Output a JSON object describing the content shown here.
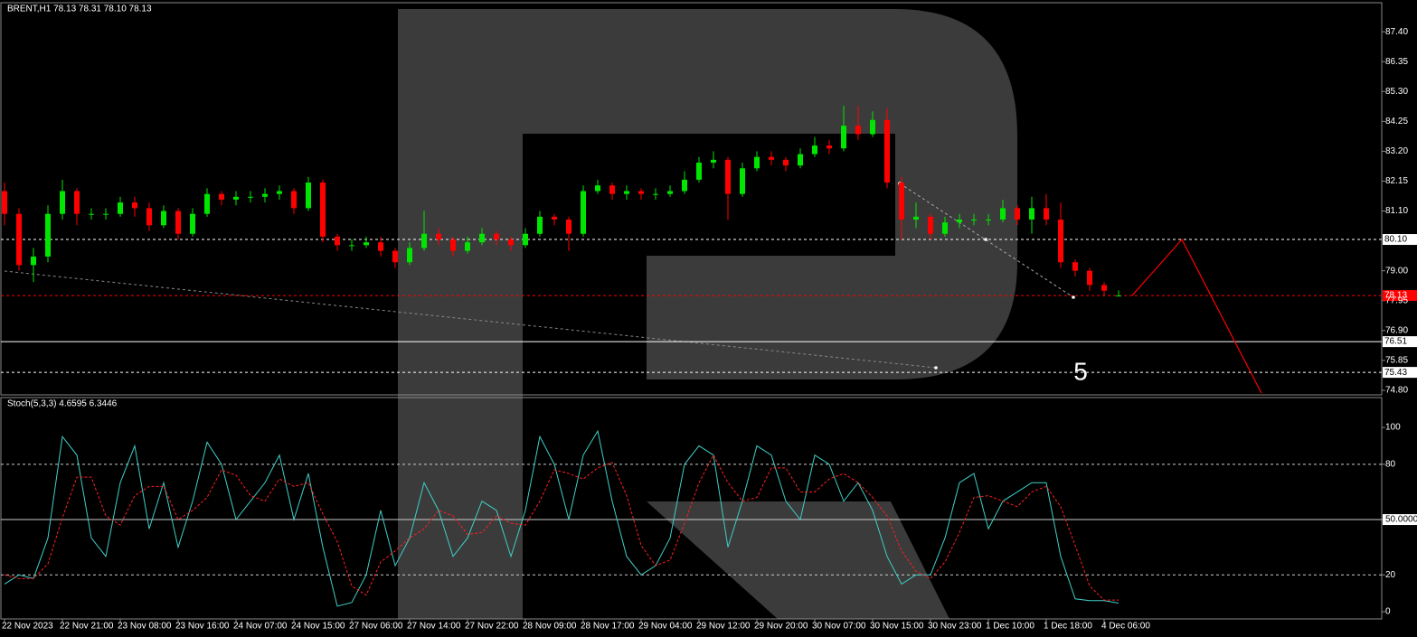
{
  "chart_data": [
    {
      "type": "candlestick",
      "title": "BRENT,H1  78.13 78.31 78.10 78.13",
      "up_color": "#00e600",
      "down_color": "#ff0000",
      "ylim": [
        74.64,
        88.42
      ],
      "yticks": [
        {
          "value": 87.4,
          "label": "87.40"
        },
        86.35,
        {
          "value": 85.3,
          "label": "85.30"
        },
        84.25,
        {
          "value": 83.2,
          "label": "83.20"
        },
        82.15,
        {
          "value": 81.1,
          "label": "81.10"
        },
        {
          "value": 79,
          "label": "79.00"
        },
        77.95,
        {
          "value": 76.9,
          "label": "76.90"
        },
        75.85,
        {
          "value": 74.8,
          "label": "74.80"
        }
      ],
      "xticks": [
        {
          "value": 0,
          "label": "22 Nov 2023"
        },
        {
          "value": 4,
          "label": "22 Nov 21:00"
        },
        {
          "value": 8,
          "label": "23 Nov 08:00"
        },
        {
          "value": 12,
          "label": "23 Nov 16:00"
        },
        {
          "value": 16,
          "label": "24 Nov 07:00"
        },
        {
          "value": 20,
          "label": "24 Nov 15:00"
        },
        {
          "value": 24,
          "label": "27 Nov 06:00"
        },
        {
          "value": 28,
          "label": "27 Nov 14:00"
        },
        {
          "value": 32,
          "label": "27 Nov 22:00"
        },
        {
          "value": 36,
          "label": "28 Nov 09:00"
        },
        {
          "value": 40,
          "label": "28 Nov 17:00"
        },
        {
          "value": 44,
          "label": "29 Nov 04:00"
        },
        {
          "value": 48,
          "label": "29 Nov 12:00"
        },
        {
          "value": 52,
          "label": "29 Nov 20:00"
        },
        {
          "value": 56,
          "label": "30 Nov 07:00"
        },
        {
          "value": 60,
          "label": "30 Nov 15:00"
        },
        {
          "value": 64,
          "label": "30 Nov 23:00"
        },
        {
          "value": 68,
          "label": "1 Dec 10:00"
        },
        {
          "value": 72,
          "label": "1 Dec 18:00"
        },
        {
          "value": 76,
          "label": "4 Dec 06:00"
        }
      ],
      "open": [
        81.8,
        81.0,
        79.2,
        79.5,
        81.0,
        81.8,
        81.0,
        81.0,
        81.0,
        81.4,
        81.2,
        80.6,
        81.1,
        80.3,
        81.0,
        81.7,
        81.5,
        81.6,
        81.6,
        81.7,
        81.8,
        81.2,
        82.1,
        80.2,
        79.9,
        79.9,
        80.0,
        79.7,
        79.3,
        79.8,
        80.3,
        80.1,
        79.7,
        80.0,
        80.3,
        80.1,
        79.9,
        80.3,
        80.9,
        80.8,
        80.3,
        81.8,
        82.0,
        81.7,
        81.8,
        81.7,
        81.7,
        81.8,
        82.2,
        82.8,
        82.9,
        81.7,
        82.6,
        83.0,
        82.9,
        82.7,
        83.1,
        83.4,
        83.3,
        84.1,
        83.8,
        84.3,
        82.1,
        80.8,
        80.9,
        80.3,
        80.7,
        80.8,
        80.8,
        80.8,
        81.2,
        80.8,
        81.2,
        80.8,
        79.3,
        79.0,
        78.5,
        78.13
      ],
      "high": [
        82.1,
        81.2,
        79.8,
        81.3,
        82.2,
        81.9,
        81.2,
        81.2,
        81.6,
        81.6,
        81.4,
        81.3,
        81.2,
        81.2,
        81.9,
        81.8,
        81.8,
        81.8,
        81.9,
        82.0,
        81.9,
        82.3,
        82.2,
        80.3,
        80.1,
        80.2,
        80.2,
        79.8,
        80.0,
        81.1,
        80.5,
        80.2,
        80.2,
        80.5,
        80.4,
        80.2,
        80.5,
        81.1,
        81.0,
        80.9,
        82.0,
        82.2,
        82.1,
        82.0,
        81.9,
        81.9,
        82.0,
        82.5,
        83.0,
        83.2,
        83.0,
        82.8,
        83.2,
        83.2,
        83.0,
        83.3,
        83.7,
        83.6,
        84.8,
        84.8,
        84.6,
        84.7,
        82.3,
        81.4,
        81.0,
        80.9,
        81.0,
        81.0,
        81.0,
        81.5,
        81.3,
        81.6,
        81.7,
        81.4,
        79.4,
        79.1,
        78.6,
        78.31
      ],
      "low": [
        80.6,
        79.0,
        78.6,
        79.3,
        80.8,
        80.6,
        80.8,
        80.8,
        80.9,
        80.9,
        80.4,
        80.5,
        80.1,
        80.2,
        80.9,
        81.3,
        81.3,
        81.4,
        81.4,
        81.5,
        81.0,
        81.1,
        80.0,
        79.7,
        79.7,
        79.8,
        79.5,
        79.1,
        79.2,
        79.7,
        79.9,
        79.5,
        79.6,
        79.9,
        79.9,
        79.7,
        79.8,
        80.2,
        80.6,
        79.7,
        80.2,
        81.7,
        81.5,
        81.5,
        81.5,
        81.5,
        81.6,
        81.7,
        82.1,
        82.6,
        80.8,
        81.6,
        82.5,
        82.7,
        82.5,
        82.6,
        83.0,
        83.1,
        83.2,
        83.6,
        83.7,
        81.9,
        80.1,
        80.5,
        80.1,
        80.2,
        80.5,
        80.6,
        80.6,
        80.7,
        80.6,
        80.3,
        80.6,
        79.1,
        78.8,
        78.3,
        78.1,
        78.1
      ],
      "close": [
        81.0,
        79.2,
        79.5,
        81.0,
        81.8,
        81.0,
        81.0,
        81.0,
        81.4,
        81.2,
        80.6,
        81.1,
        80.3,
        81.0,
        81.7,
        81.5,
        81.6,
        81.6,
        81.7,
        81.8,
        81.2,
        82.1,
        80.2,
        79.9,
        79.9,
        80.0,
        79.7,
        79.3,
        79.8,
        80.3,
        80.1,
        79.7,
        80.0,
        80.3,
        80.1,
        79.9,
        80.3,
        80.9,
        80.8,
        80.3,
        81.8,
        82.0,
        81.7,
        81.8,
        81.7,
        81.7,
        81.8,
        82.2,
        82.8,
        82.9,
        81.7,
        82.6,
        83.0,
        82.9,
        82.7,
        83.1,
        83.4,
        83.3,
        84.1,
        83.8,
        84.3,
        82.1,
        80.8,
        80.9,
        80.3,
        80.7,
        80.8,
        80.8,
        80.8,
        81.2,
        80.8,
        81.2,
        80.8,
        79.3,
        79.0,
        78.5,
        78.3,
        78.13
      ],
      "levels": [
        {
          "value": 80.1,
          "label": "80.10",
          "style": "dashed",
          "color": "#ffffff"
        },
        {
          "value": 78.13,
          "style": "dashed",
          "color": "#ff0000"
        },
        {
          "value": 76.51,
          "style": "solid",
          "color": "#ffffff"
        },
        {
          "value": 75.43,
          "style": "dashed",
          "color": "#ffffff"
        }
      ],
      "forecast": {
        "color": "#ff0000",
        "values": [
          78.13,
          80.1,
          74.7
        ]
      },
      "annotation": "5"
    },
    {
      "type": "line",
      "title": "Stoch(5,3,3) 4.6595 6.3446",
      "ylim": [
        -3.9,
        116.2
      ],
      "yticks": [
        100,
        80,
        {
          "value": 50,
          "label": "50.0000"
        },
        20,
        0
      ],
      "grid_styles": [
        "none",
        "dashed",
        "solid",
        "dashed",
        "none"
      ],
      "series": [
        {
          "color": "#3fd0c8",
          "dash": "none",
          "values": [
            15,
            20,
            18,
            40,
            95,
            85,
            40,
            30,
            70,
            90,
            45,
            70,
            35,
            60,
            92,
            80,
            50,
            60,
            70,
            85,
            50,
            75,
            35,
            3,
            5,
            20,
            55,
            25,
            40,
            70,
            55,
            30,
            40,
            60,
            55,
            30,
            55,
            95,
            80,
            50,
            85,
            98,
            60,
            30,
            20,
            25,
            40,
            80,
            90,
            85,
            35,
            60,
            90,
            85,
            60,
            50,
            85,
            80,
            60,
            70,
            55,
            30,
            15,
            20,
            20,
            40,
            70,
            75,
            45,
            60,
            65,
            70,
            70,
            30,
            7,
            6,
            6,
            4.6595
          ]
        },
        {
          "color": "#ff2020",
          "dash": "3,2",
          "values": [
            20,
            18,
            18,
            26,
            51,
            73,
            73,
            52,
            47,
            63,
            68,
            68,
            50,
            55,
            62,
            77,
            74,
            63,
            60,
            72,
            68,
            70,
            53,
            38,
            14,
            9,
            27,
            33,
            40,
            45,
            55,
            52,
            42,
            43,
            52,
            48,
            47,
            60,
            77,
            75,
            72,
            78,
            81,
            63,
            36,
            25,
            28,
            48,
            70,
            85,
            70,
            60,
            62,
            78,
            78,
            65,
            65,
            72,
            75,
            70,
            62,
            52,
            33,
            22,
            18,
            27,
            43,
            62,
            63,
            60,
            57,
            65,
            68,
            57,
            36,
            14,
            6.3,
            6.3446
          ]
        }
      ]
    }
  ]
}
